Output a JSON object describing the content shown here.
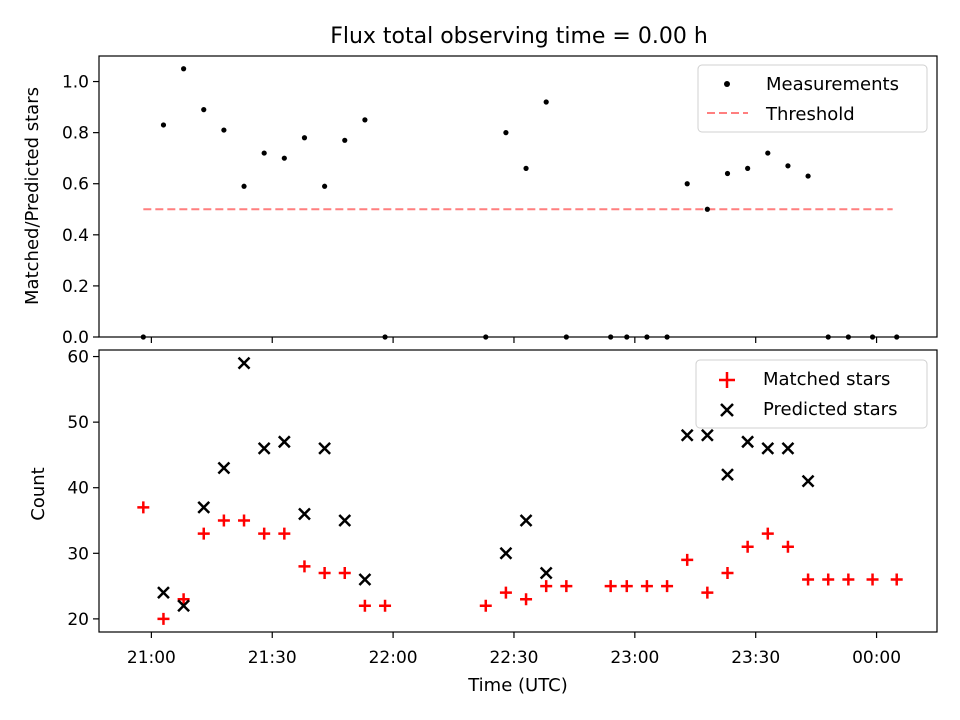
{
  "title": "Flux total observing time = 0.00 h",
  "colors": {
    "measurement": "#000000",
    "threshold": "#ff7f7f",
    "matched": "#ff0000",
    "predicted": "#000000"
  },
  "chart_data": [
    {
      "type": "scatter",
      "ylabel": "Matched/Predicted stars",
      "ylim": [
        0,
        1.1
      ],
      "yticks": [
        "0.0",
        "0.2",
        "0.4",
        "0.6",
        "0.8",
        "1.0"
      ],
      "ytick_values": [
        0,
        0.2,
        0.4,
        0.6,
        0.8,
        1.0
      ],
      "legend_position": "top-right",
      "legend": [
        "Measurements",
        "Threshold"
      ],
      "series": [
        {
          "name": "Measurements",
          "marker": "dot",
          "points": [
            [
              "20:58",
              0
            ],
            [
              "21:03",
              0.83
            ],
            [
              "21:08",
              1.05
            ],
            [
              "21:13",
              0.89
            ],
            [
              "21:18",
              0.81
            ],
            [
              "21:23",
              0.59
            ],
            [
              "21:28",
              0.72
            ],
            [
              "21:33",
              0.7
            ],
            [
              "21:38",
              0.78
            ],
            [
              "21:43",
              0.59
            ],
            [
              "21:48",
              0.77
            ],
            [
              "21:53",
              0.85
            ],
            [
              "21:58",
              0
            ],
            [
              "22:23",
              0
            ],
            [
              "22:28",
              0.8
            ],
            [
              "22:33",
              0.66
            ],
            [
              "22:38",
              0.92
            ],
            [
              "22:43",
              0
            ],
            [
              "22:54",
              0
            ],
            [
              "22:58",
              0
            ],
            [
              "23:03",
              0
            ],
            [
              "23:08",
              0
            ],
            [
              "23:13",
              0.6
            ],
            [
              "23:18",
              0.5
            ],
            [
              "23:23",
              0.64
            ],
            [
              "23:28",
              0.66
            ],
            [
              "23:33",
              0.72
            ],
            [
              "23:38",
              0.67
            ],
            [
              "23:43",
              0.63
            ],
            [
              "23:48",
              0
            ],
            [
              "23:53",
              0
            ],
            [
              "23:59",
              0
            ],
            [
              "00:05",
              0
            ]
          ]
        },
        {
          "name": "Threshold",
          "line": "dashed",
          "points": [
            [
              "20:58",
              0.5
            ],
            [
              "00:04",
              0.5
            ]
          ]
        }
      ]
    },
    {
      "type": "scatter",
      "xlabel": "Time (UTC)",
      "ylabel": "Count",
      "ylim": [
        18,
        61
      ],
      "yticks": [
        "20",
        "30",
        "40",
        "50",
        "60"
      ],
      "ytick_values": [
        20,
        30,
        40,
        50,
        60
      ],
      "xlim": [
        "20:47",
        "00:15"
      ],
      "xticks": [
        "21:00",
        "21:30",
        "22:00",
        "22:30",
        "23:00",
        "23:30",
        "00:00"
      ],
      "legend_position": "top-right",
      "legend": [
        "Matched stars",
        "Predicted stars"
      ],
      "series": [
        {
          "name": "Matched stars",
          "marker": "plus",
          "points": [
            [
              "20:58",
              37
            ],
            [
              "21:03",
              20
            ],
            [
              "21:08",
              23
            ],
            [
              "21:13",
              33
            ],
            [
              "21:18",
              35
            ],
            [
              "21:23",
              35
            ],
            [
              "21:28",
              33
            ],
            [
              "21:33",
              33
            ],
            [
              "21:38",
              28
            ],
            [
              "21:43",
              27
            ],
            [
              "21:48",
              27
            ],
            [
              "21:53",
              22
            ],
            [
              "21:58",
              22
            ],
            [
              "22:23",
              22
            ],
            [
              "22:28",
              24
            ],
            [
              "22:33",
              23
            ],
            [
              "22:38",
              25
            ],
            [
              "22:43",
              25
            ],
            [
              "22:54",
              25
            ],
            [
              "22:58",
              25
            ],
            [
              "23:03",
              25
            ],
            [
              "23:08",
              25
            ],
            [
              "23:13",
              29
            ],
            [
              "23:18",
              24
            ],
            [
              "23:23",
              27
            ],
            [
              "23:28",
              31
            ],
            [
              "23:33",
              33
            ],
            [
              "23:38",
              31
            ],
            [
              "23:43",
              26
            ],
            [
              "23:48",
              26
            ],
            [
              "23:53",
              26
            ],
            [
              "23:59",
              26
            ],
            [
              "00:05",
              26
            ]
          ]
        },
        {
          "name": "Predicted stars",
          "marker": "x",
          "points": [
            [
              "21:03",
              24
            ],
            [
              "21:08",
              22
            ],
            [
              "21:13",
              37
            ],
            [
              "21:18",
              43
            ],
            [
              "21:23",
              59
            ],
            [
              "21:28",
              46
            ],
            [
              "21:33",
              47
            ],
            [
              "21:38",
              36
            ],
            [
              "21:43",
              46
            ],
            [
              "21:48",
              35
            ],
            [
              "21:53",
              26
            ],
            [
              "22:28",
              30
            ],
            [
              "22:33",
              35
            ],
            [
              "22:38",
              27
            ],
            [
              "23:13",
              48
            ],
            [
              "23:18",
              48
            ],
            [
              "23:23",
              42
            ],
            [
              "23:28",
              47
            ],
            [
              "23:33",
              46
            ],
            [
              "23:38",
              46
            ],
            [
              "23:43",
              41
            ]
          ]
        }
      ]
    }
  ]
}
